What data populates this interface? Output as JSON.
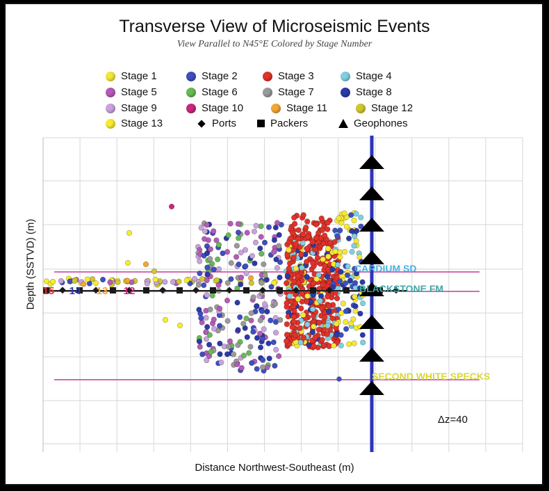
{
  "chart_data": {
    "type": "scatter",
    "title": "Transverse View of Microseismic Events",
    "subtitle": "View Parallel to N45°E    Colored by Stage Number",
    "xlabel": "Distance Northwest-Southeast  (m)",
    "ylabel": "Depth (SSTVD) (m)",
    "grid": true,
    "annotation": "Δz=40",
    "legend_position": "top",
    "legend": [
      {
        "label": "Stage 1",
        "symbol": "dot",
        "color": "#f5e63a"
      },
      {
        "label": "Stage 2",
        "symbol": "dot",
        "color": "#3f4fc0"
      },
      {
        "label": "Stage 3",
        "symbol": "dot",
        "color": "#e0322a"
      },
      {
        "label": "Stage 4",
        "symbol": "dot",
        "color": "#7fd0e0"
      },
      {
        "label": "Stage 5",
        "symbol": "dot",
        "color": "#b65ab8"
      },
      {
        "label": "Stage 6",
        "symbol": "dot",
        "color": "#66bb55"
      },
      {
        "label": "Stage 7",
        "symbol": "dot",
        "color": "#9a9a9a"
      },
      {
        "label": "Stage 8",
        "symbol": "dot",
        "color": "#2c3aa8"
      },
      {
        "label": "Stage 9",
        "symbol": "dot",
        "color": "#c9a3dd"
      },
      {
        "label": "Stage 10",
        "symbol": "dot",
        "color": "#c8287e"
      },
      {
        "label": "Stage 11",
        "symbol": "dot",
        "color": "#f2a635"
      },
      {
        "label": "Stage 12",
        "symbol": "dot",
        "color": "#cfc72f"
      },
      {
        "label": "Stage 13",
        "symbol": "dot",
        "color": "#f7ec2c"
      },
      {
        "label": "Ports",
        "symbol": "diamond",
        "color": "#000000"
      },
      {
        "label": "Packers",
        "symbol": "square",
        "color": "#000000"
      },
      {
        "label": "Geophones",
        "symbol": "triangle",
        "color": "#000000"
      }
    ],
    "formations": [
      {
        "label": "CARDIUM SD",
        "color": "#4db1e0",
        "line_color": "#c0389a"
      },
      {
        "label": "BLACKSTONE FM",
        "color": "#3ea9a8",
        "line_color": "#c0389a"
      },
      {
        "label": "SECOND WHITE SPECKS",
        "color": "#d8d83a",
        "line_color": "#c0389a"
      }
    ],
    "well_labels": [
      "15",
      "14",
      "13",
      "12"
    ],
    "geophone_count": 8,
    "x_grid_count": 13,
    "y_grid_count": 8
  }
}
